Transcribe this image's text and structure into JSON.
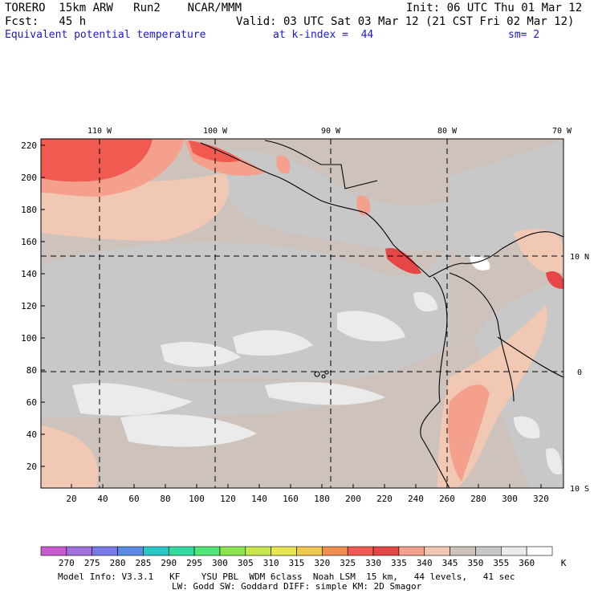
{
  "header": {
    "line1_left": "TORERO  15km ARW   Run2    NCAR/MMM",
    "line1_right": "Init: 06 UTC Thu 01 Mar 12",
    "line2_left": "Fcst:   45 h",
    "line2_right": "Valid: 03 UTC Sat 03 Mar 12 (21 CST Fri 02 Mar 12)",
    "field_name": "Equivalent potential temperature",
    "level": "at k-index =  44",
    "smoothing": "sm= 2"
  },
  "map": {
    "lon_labels": [
      "110 W",
      "100 W",
      "90 W",
      "80 W",
      "70 W"
    ],
    "lat_labels": [
      "10 N",
      "0",
      "10 S"
    ],
    "y_ticks": [
      "220",
      "200",
      "180",
      "160",
      "140",
      "120",
      "100",
      "80",
      "60",
      "40",
      "20"
    ],
    "x_ticks": [
      "20",
      "40",
      "60",
      "80",
      "100",
      "120",
      "140",
      "160",
      "180",
      "200",
      "220",
      "240",
      "260",
      "280",
      "300",
      "320"
    ]
  },
  "legend": {
    "values": [
      "270",
      "275",
      "280",
      "285",
      "290",
      "295",
      "300",
      "305",
      "310",
      "315",
      "320",
      "325",
      "330",
      "335",
      "340",
      "345",
      "350",
      "355",
      "360"
    ],
    "unit": "K",
    "colors": [
      "#c85ad2",
      "#a070dc",
      "#7878e6",
      "#5a8ce6",
      "#28c8c8",
      "#32dca0",
      "#50e678",
      "#8ce650",
      "#c8e650",
      "#e6e650",
      "#f0c850",
      "#f09050",
      "#f05a50",
      "#e64646",
      "#f5a08c",
      "#f0c8b4",
      "#cdc3bc",
      "#c8c8c8",
      "#ebebeb",
      "#ffffff"
    ]
  },
  "footer": {
    "line1": "Model Info: V3.3.1   KF    YSU PBL  WDM 6class  Noah LSM  15 km,   44 levels,   41 sec",
    "line2": "LW: Godd SW: Goddard DIFF: simple KM: 2D Smagor"
  }
}
